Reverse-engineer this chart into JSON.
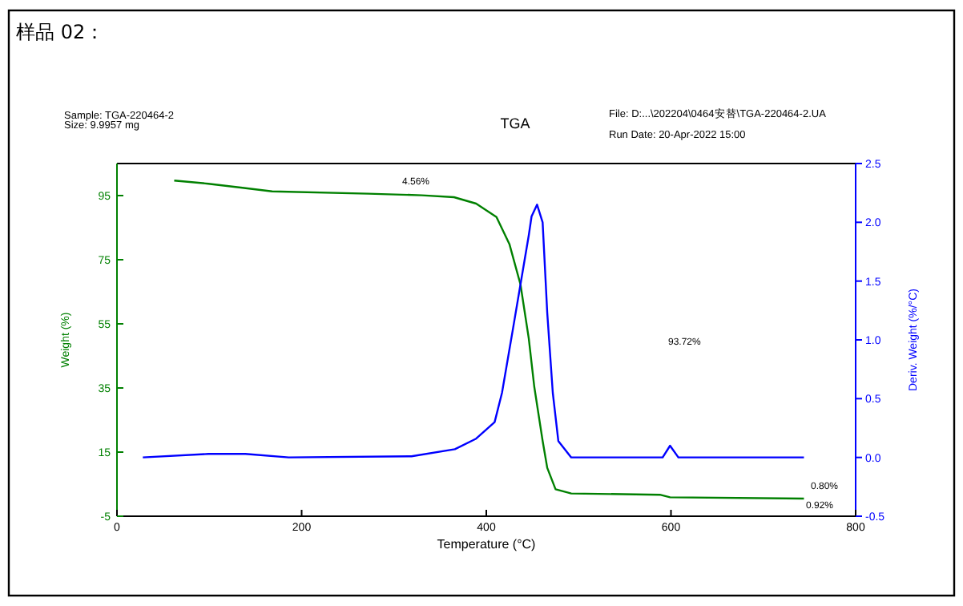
{
  "chart_data": {
    "type": "line",
    "title": "TGA",
    "xlabel": "Temperature (°C)",
    "ylabel": "Weight (%)",
    "y2label": "Deriv. Weight (%/°C)",
    "annotations": [
      "样品 02：",
      "Sample: TGA-220464-2",
      "Size:  9.9957 mg",
      "File: D:...\\202204\\0464安替\\TGA-220464-2.UA",
      "Run Date: 20-Apr-2022 15:00",
      "4.56%",
      "93.72%",
      "0.80%",
      "0.92%"
    ],
    "xlim": [
      0,
      800
    ],
    "xticks": [
      0,
      200,
      400,
      600,
      800
    ],
    "ylim": [
      -5,
      105
    ],
    "yticks": [
      -5,
      15,
      35,
      55,
      75,
      95
    ],
    "y2lim": [
      -0.5,
      2.5
    ],
    "y2ticks": [
      {
        "value": -0.5,
        "label": "-0.5"
      },
      {
        "value": 0,
        "label": "0.0"
      },
      {
        "value": 0.5,
        "label": "0.5"
      },
      {
        "value": 1,
        "label": "1.0"
      },
      {
        "value": 1.5,
        "label": "1.5"
      },
      {
        "value": 2,
        "label": "2.0"
      },
      {
        "value": 2.5,
        "label": "2.5"
      }
    ],
    "grid": false,
    "series": [
      {
        "color": "#008000",
        "x": [
          62,
          99,
          134,
          168,
          272,
          330,
          365,
          389,
          411,
          425,
          437,
          446,
          452,
          461,
          466,
          475,
          492,
          588,
          599,
          744
        ],
        "values": [
          99.7,
          98.7,
          97.5,
          96.3,
          95.6,
          95.1,
          94.5,
          92.5,
          88.3,
          79.9,
          67.3,
          50.4,
          35.3,
          18.5,
          10.1,
          3.4,
          2.1,
          1.7,
          0.9,
          0.5
        ]
      },
      {
        "color": "#0000ff",
        "axis": "y2",
        "x": [
          28,
          99,
          139,
          186,
          319,
          366,
          389,
          409,
          417,
          429,
          446,
          449,
          455,
          461,
          466,
          472,
          478,
          492,
          591,
          599,
          608,
          744
        ],
        "values": [
          0.0,
          0.03,
          0.03,
          0.0,
          0.01,
          0.07,
          0.16,
          0.3,
          0.55,
          1.1,
          1.89,
          2.05,
          2.15,
          2.0,
          1.23,
          0.55,
          0.14,
          0.0,
          0.0,
          0.1,
          0.0,
          0.0
        ]
      }
    ]
  }
}
